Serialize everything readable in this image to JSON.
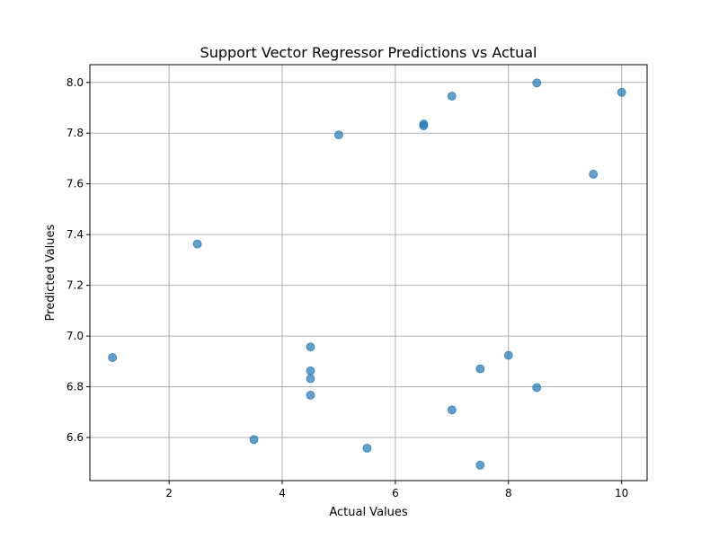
{
  "chart_data": {
    "type": "scatter",
    "title": "Support Vector Regressor Predictions vs Actual",
    "xlabel": "Actual Values",
    "ylabel": "Predicted Values",
    "xlim": [
      0.6,
      10.45
    ],
    "ylim": [
      6.43,
      8.07
    ],
    "xticks": [
      2,
      4,
      6,
      8,
      10
    ],
    "yticks": [
      6.6,
      6.8,
      7.0,
      7.2,
      7.4,
      7.6,
      7.8,
      8.0
    ],
    "grid": true,
    "marker_color": "#1f77b4",
    "points": [
      {
        "x": 1.0,
        "y": 6.915
      },
      {
        "x": 2.5,
        "y": 7.363
      },
      {
        "x": 3.5,
        "y": 6.592
      },
      {
        "x": 4.5,
        "y": 6.957
      },
      {
        "x": 4.5,
        "y": 6.863
      },
      {
        "x": 4.5,
        "y": 6.832
      },
      {
        "x": 4.5,
        "y": 6.767
      },
      {
        "x": 5.0,
        "y": 7.793
      },
      {
        "x": 5.5,
        "y": 6.558
      },
      {
        "x": 6.5,
        "y": 7.836
      },
      {
        "x": 6.5,
        "y": 7.829
      },
      {
        "x": 7.0,
        "y": 7.946
      },
      {
        "x": 7.0,
        "y": 6.709
      },
      {
        "x": 7.5,
        "y": 6.871
      },
      {
        "x": 7.5,
        "y": 6.491
      },
      {
        "x": 8.0,
        "y": 6.924
      },
      {
        "x": 8.5,
        "y": 7.998
      },
      {
        "x": 8.5,
        "y": 6.797
      },
      {
        "x": 9.5,
        "y": 7.638
      },
      {
        "x": 10.0,
        "y": 7.961
      }
    ]
  }
}
